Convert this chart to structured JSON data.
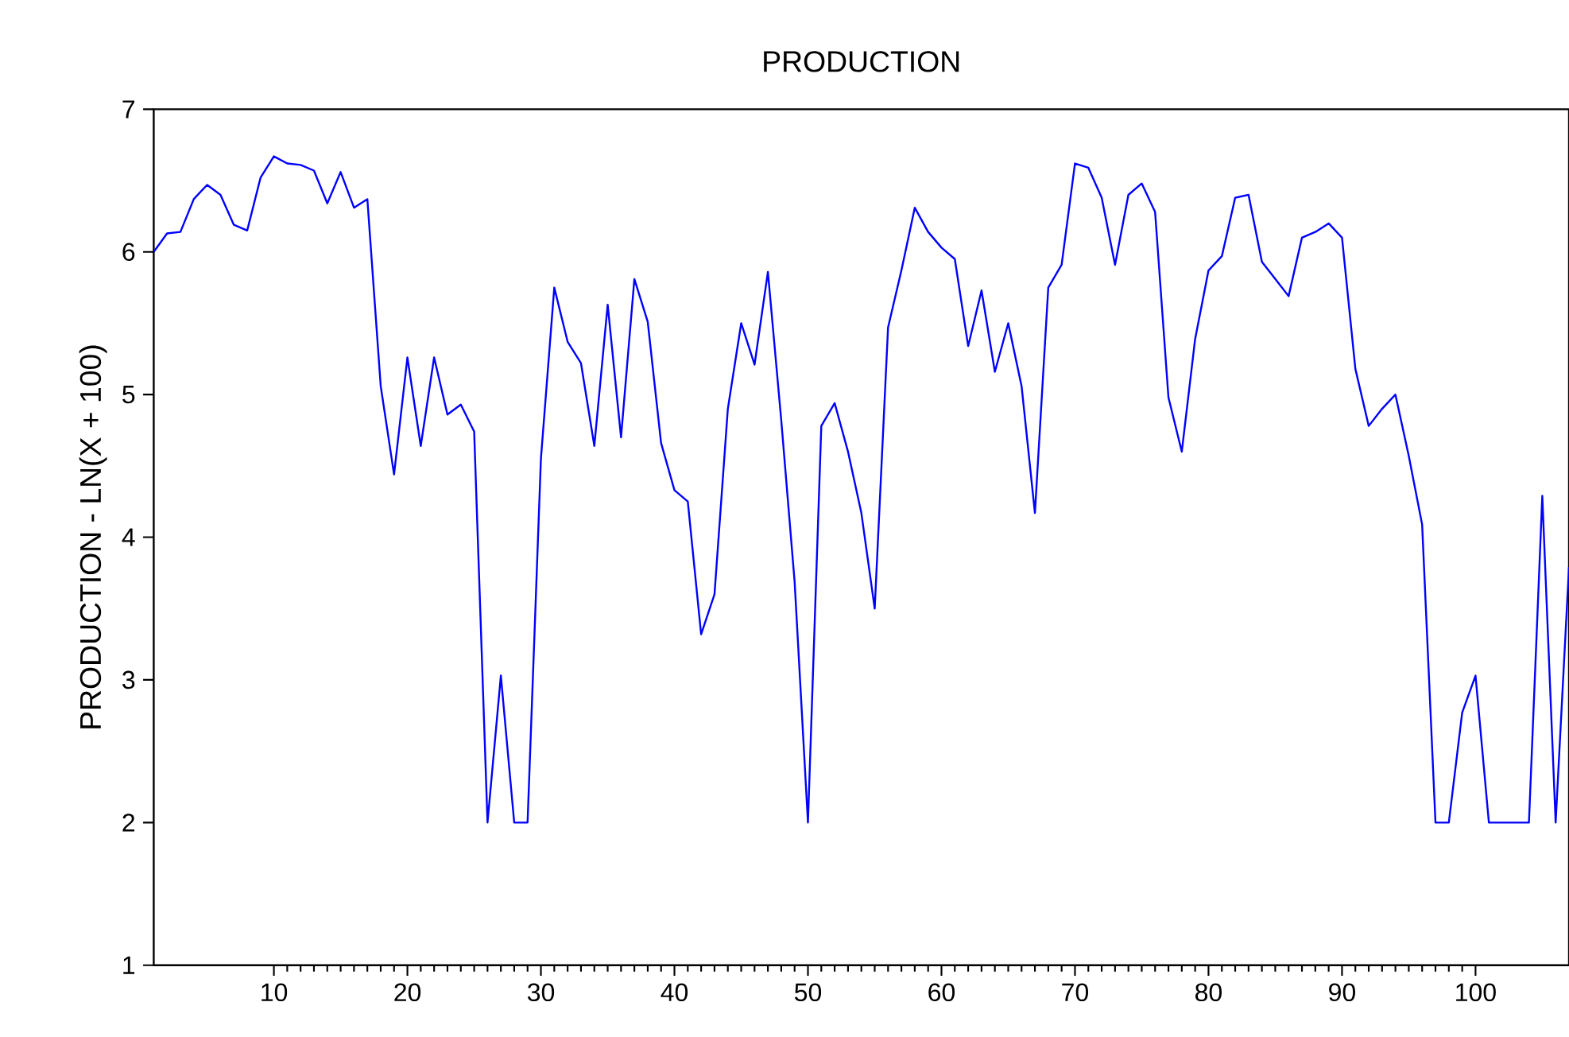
{
  "chart_data": {
    "type": "line",
    "title": "PRODUCTION",
    "ylabel": "PRODUCTION - LN(X + 100)",
    "x": [
      1,
      2,
      3,
      4,
      5,
      6,
      7,
      8,
      9,
      10,
      11,
      12,
      13,
      14,
      15,
      16,
      17,
      18,
      19,
      20,
      21,
      22,
      23,
      24,
      25,
      26,
      27,
      28,
      29,
      30,
      31,
      32,
      33,
      34,
      35,
      36,
      37,
      38,
      39,
      40,
      41,
      42,
      43,
      44,
      45,
      46,
      47,
      48,
      49,
      50,
      51,
      52,
      53,
      54,
      55,
      56,
      57,
      58,
      59,
      60,
      61,
      62,
      63,
      64,
      65,
      66,
      67,
      68,
      69,
      70,
      71,
      72,
      73,
      74,
      75,
      76,
      77,
      78,
      79,
      80,
      81,
      82,
      83,
      84,
      85,
      86,
      87,
      88,
      89,
      90,
      91,
      92,
      93,
      94,
      95,
      96,
      97,
      98,
      99,
      100,
      101,
      102,
      103,
      104,
      105,
      106,
      107
    ],
    "series": [
      {
        "color": "#0000ff",
        "values": [
          6.0,
          6.13,
          6.14,
          6.37,
          6.47,
          6.4,
          6.19,
          6.15,
          6.52,
          6.67,
          6.62,
          6.61,
          6.57,
          6.34,
          6.56,
          6.31,
          6.37,
          5.06,
          4.44,
          5.26,
          4.64,
          5.26,
          4.86,
          4.93,
          4.74,
          2.0,
          3.03,
          2.0,
          2.0,
          4.55,
          5.75,
          5.37,
          5.22,
          4.64,
          5.63,
          4.7,
          5.81,
          5.51,
          4.66,
          4.33,
          4.25,
          3.32,
          3.6,
          4.9,
          5.5,
          5.21,
          5.86,
          4.82,
          3.69,
          2.0,
          4.78,
          4.94,
          4.6,
          4.17,
          3.5,
          5.47,
          5.87,
          6.31,
          6.14,
          6.03,
          5.95,
          5.34,
          5.73,
          5.16,
          5.5,
          5.06,
          4.17,
          5.75,
          5.91,
          6.62,
          6.59,
          6.38,
          5.91,
          6.4,
          6.48,
          6.28,
          4.98,
          4.6,
          5.39,
          5.87,
          5.97,
          6.38,
          6.4,
          5.93,
          5.81,
          5.69,
          6.1,
          6.14,
          6.2,
          6.1,
          5.18,
          4.78,
          4.9,
          5.0,
          4.57,
          4.09,
          2.0,
          2.0,
          2.77,
          3.03,
          2.0,
          2.0,
          2.0,
          2.0,
          4.29,
          2.0,
          3.79
        ]
      }
    ],
    "xlim": [
      1,
      107
    ],
    "xticks": [
      10,
      20,
      30,
      40,
      50,
      60,
      70,
      80,
      90,
      100
    ],
    "ylim": [
      1,
      7
    ],
    "yticks": [
      1,
      2,
      3,
      4,
      5,
      6,
      7
    ],
    "grid": false,
    "marker": "none",
    "line_style": "solid"
  }
}
